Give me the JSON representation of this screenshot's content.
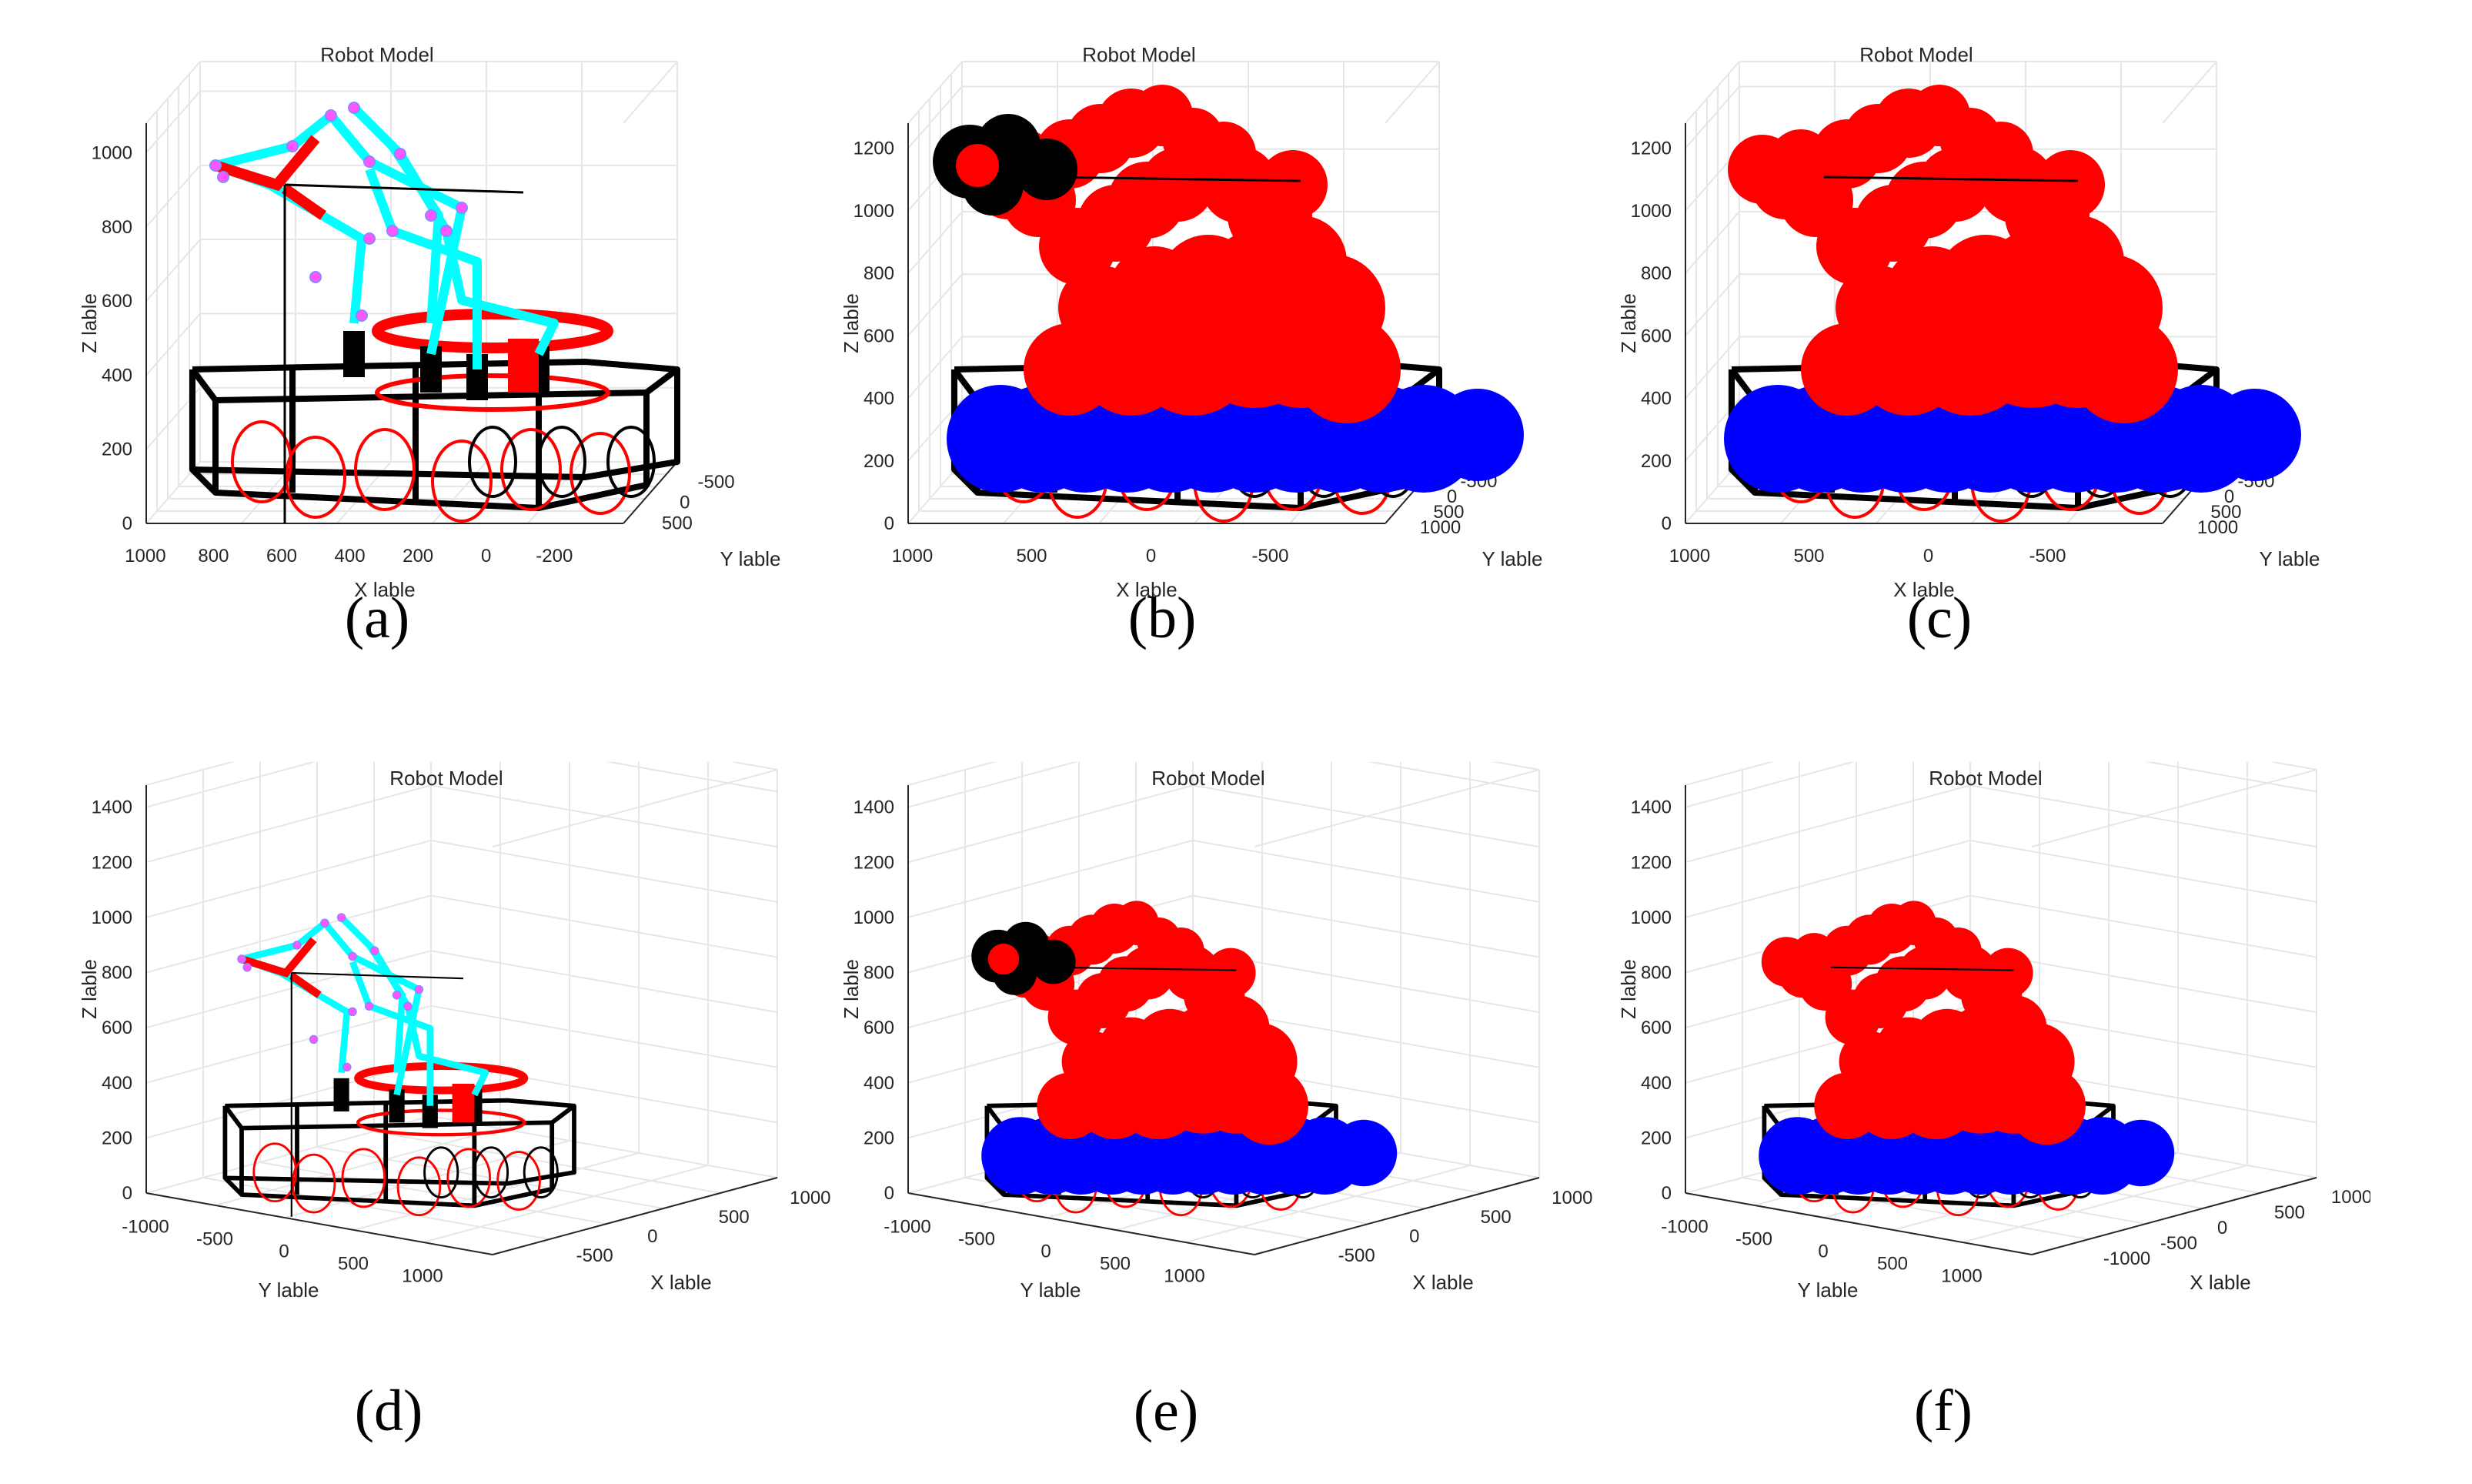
{
  "colors": {
    "arm_link": "#00ffff",
    "joint_marker": "#ff55ff",
    "frame": "#000000",
    "collision_body": "#ff0000",
    "collision_base": "#0000ff",
    "wheel": "#ff0000",
    "grid": "#e6e6e6",
    "axis": "#262626"
  },
  "panels": [
    {
      "id": "a",
      "caption": "(a)",
      "title": "Robot Model",
      "xlabel": "X lable",
      "ylabel": "Y lable",
      "zlabel": "Z lable",
      "z_ticks": [
        "0",
        "200",
        "400",
        "600",
        "800",
        "1000"
      ],
      "x_ticks": [
        "1000",
        "800",
        "600",
        "400",
        "200",
        "0",
        "-200"
      ],
      "y_ticks": [
        "-500",
        "0",
        "500"
      ],
      "render": "wireframe"
    },
    {
      "id": "b",
      "caption": "(b)",
      "title": "Robot Model",
      "xlabel": "X lable",
      "ylabel": "Y lable",
      "zlabel": "Z lable",
      "z_ticks": [
        "0",
        "200",
        "400",
        "600",
        "800",
        "1000",
        "1200"
      ],
      "x_ticks": [
        "1000",
        "500",
        "0",
        "-500"
      ],
      "y_ticks": [
        "-500",
        "0",
        "500",
        "1000"
      ],
      "render": "spheres-with-collision"
    },
    {
      "id": "c",
      "caption": "(c)",
      "title": "Robot Model",
      "xlabel": "X lable",
      "ylabel": "Y lable",
      "zlabel": "Z lable",
      "z_ticks": [
        "0",
        "200",
        "400",
        "600",
        "800",
        "1000",
        "1200"
      ],
      "x_ticks": [
        "1000",
        "500",
        "0",
        "-500"
      ],
      "y_ticks": [
        "-500",
        "0",
        "500",
        "1000"
      ],
      "render": "spheres"
    },
    {
      "id": "d",
      "caption": "(d)",
      "title": "Robot Model",
      "xlabel": "X lable",
      "ylabel": "Y lable",
      "zlabel": "Z lable",
      "z_ticks": [
        "0",
        "200",
        "400",
        "600",
        "800",
        "1000",
        "1200",
        "1400"
      ],
      "y_ticks": [
        "-1000",
        "-500",
        "0",
        "500",
        "1000"
      ],
      "x_ticks": [
        "1000",
        "500",
        "0",
        "-500"
      ],
      "render": "wireframe"
    },
    {
      "id": "e",
      "caption": "(e)",
      "title": "Robot Model",
      "xlabel": "X lable",
      "ylabel": "Y lable",
      "zlabel": "Z lable",
      "z_ticks": [
        "0",
        "200",
        "400",
        "600",
        "800",
        "1000",
        "1200",
        "1400"
      ],
      "y_ticks": [
        "-1000",
        "-500",
        "0",
        "500",
        "1000"
      ],
      "x_ticks": [
        "1000",
        "500",
        "0",
        "-500"
      ],
      "render": "spheres-with-collision"
    },
    {
      "id": "f",
      "caption": "(f)",
      "title": "Robot Model",
      "xlabel": "X lable",
      "ylabel": "Y lable",
      "zlabel": "Z lable",
      "z_ticks": [
        "0",
        "200",
        "400",
        "600",
        "800",
        "1000",
        "1200",
        "1400"
      ],
      "y_ticks": [
        "-1000",
        "-500",
        "0",
        "500",
        "1000"
      ],
      "x_ticks": [
        "1000",
        "500",
        "0",
        "-500",
        "-1000"
      ],
      "render": "spheres"
    }
  ]
}
